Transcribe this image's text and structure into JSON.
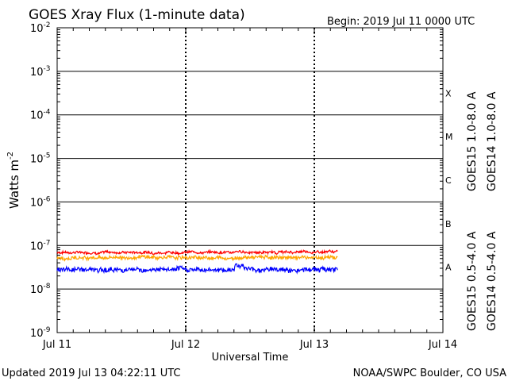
{
  "chart_data": {
    "type": "line",
    "title": "GOES Xray Flux (1-minute data)",
    "begin_label": "Begin:  2019 Jul 11 0000 UTC",
    "xlabel": "Universal Time",
    "ylabel": "Watts m",
    "ylabel_exp": "-2",
    "y_scale": "log",
    "ylim": [
      1e-09,
      0.01
    ],
    "y_ticks": [
      {
        "base": "10",
        "exp": "-2"
      },
      {
        "base": "10",
        "exp": "-3"
      },
      {
        "base": "10",
        "exp": "-4"
      },
      {
        "base": "10",
        "exp": "-5"
      },
      {
        "base": "10",
        "exp": "-6"
      },
      {
        "base": "10",
        "exp": "-7"
      },
      {
        "base": "10",
        "exp": "-8"
      },
      {
        "base": "10",
        "exp": "-9"
      }
    ],
    "x_range_days": [
      0,
      3
    ],
    "x_ticks": [
      "Jul 11",
      "Jul 12",
      "Jul 13",
      "Jul 14"
    ],
    "flare_classes": [
      "X",
      "M",
      "C",
      "B",
      "A"
    ],
    "series": [
      {
        "name": "GOES15 1.0-8.0 A",
        "color": "#ff0000",
        "x_end_day": 2.18,
        "base": 7e-08,
        "noise": 0.05
      },
      {
        "name": "GOES14 1.0-8.0 A",
        "color": "#ffa500",
        "x_end_day": 2.18,
        "base": 5.3e-08,
        "noise": 0.07
      },
      {
        "name": "GOES15 0.5-4.0 A",
        "color": "#0000ff",
        "x_end_day": 2.18,
        "base": 2.8e-08,
        "noise": 0.1
      },
      {
        "name": "GOES14 0.5-4.0 A",
        "color": "#8000ff",
        "x_end_day": 2.18,
        "base": 2.6e-08,
        "noise": 0.1
      }
    ]
  },
  "footer": {
    "updated": "Updated 2019 Jul 13 04:22:11 UTC",
    "source": "NOAA/SWPC Boulder, CO USA"
  }
}
